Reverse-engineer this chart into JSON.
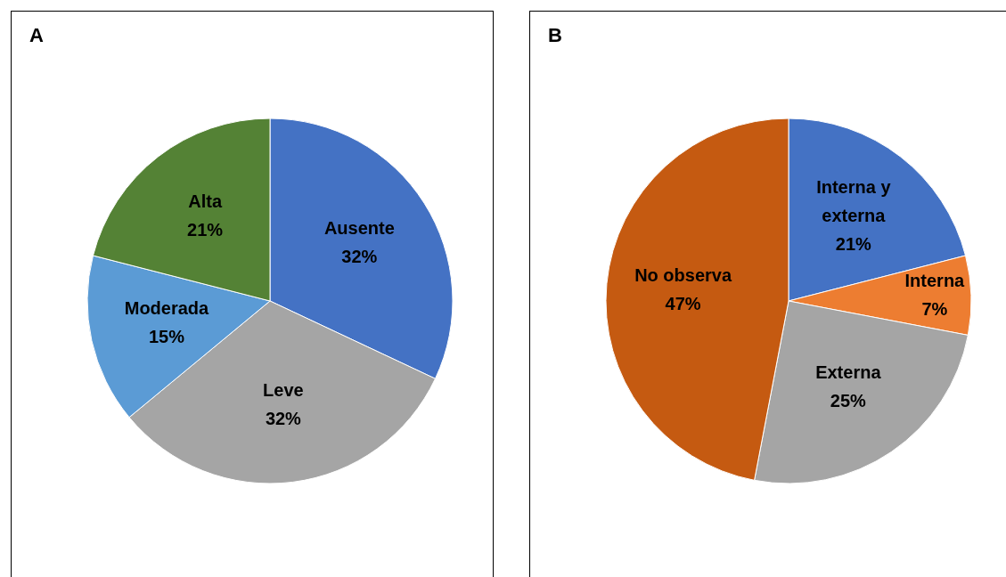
{
  "chart_data": [
    {
      "type": "pie",
      "title": "A",
      "categories": [
        "Ausente",
        "Leve",
        "Moderada",
        "Alta"
      ],
      "values": [
        32,
        32,
        15,
        21
      ],
      "value_labels": [
        "32%",
        "32%",
        "15%",
        "21%"
      ],
      "colors": [
        "#4472c4",
        "#a5a5a5",
        "#5b9bd5",
        "#548235"
      ],
      "legend": false
    },
    {
      "type": "pie",
      "title": "B",
      "categories": [
        "Interna y externa",
        "Interna",
        "Externa",
        "No observa"
      ],
      "values": [
        21,
        7,
        25,
        47
      ],
      "value_labels": [
        "21%",
        "7%",
        "25%",
        "47%"
      ],
      "colors": [
        "#4472c4",
        "#ed7d31",
        "#a5a5a5",
        "#c55a11"
      ],
      "legend": false
    }
  ]
}
